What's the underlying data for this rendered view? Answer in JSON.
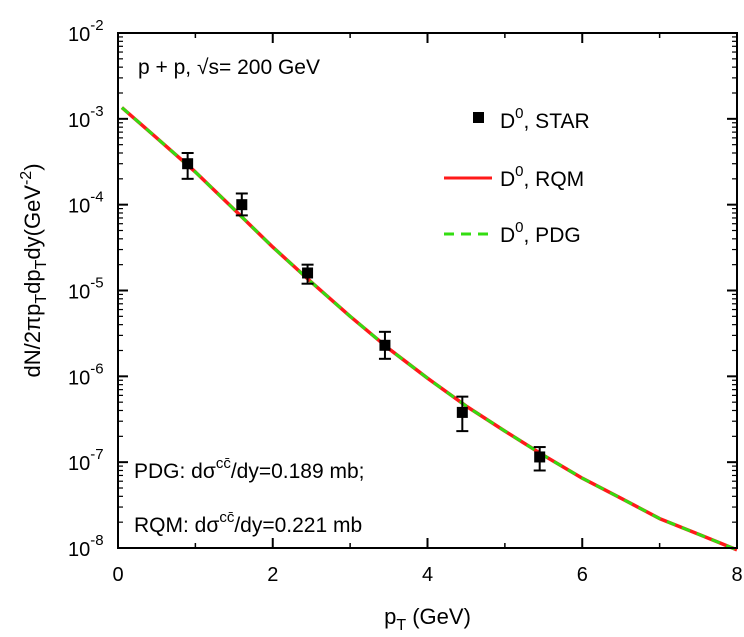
{
  "chart_data": {
    "type": "scatter",
    "annotation_top": "p + p, √s= 200 GeV",
    "annotation_pdg": {
      "prefix": "PDG: dσ",
      "sup": "cc̄",
      "suffix": "/dy=0.189 mb;"
    },
    "annotation_rqm": {
      "prefix": "RQM: dσ",
      "sup": "cc̄",
      "suffix": "/dy=0.221 mb"
    },
    "xlabel": {
      "base": "p",
      "sub": "T",
      "rest": " (GeV)"
    },
    "ylabel": "dN/2πpₜdpₜdy(GeV⁻²)",
    "ylabel_parts": {
      "a": "dN/2πp",
      "sub1": "T",
      "b": "dp",
      "sub2": "T",
      "c": "dy(GeV",
      "sup": "-2",
      "d": ")"
    },
    "xlim": [
      0,
      8
    ],
    "ylim": [
      1e-08,
      0.01
    ],
    "yscale": "log",
    "x_ticks": [
      "0",
      "2",
      "4",
      "6",
      "8"
    ],
    "y_ticks": [
      {
        "base": "10",
        "exp": "-8"
      },
      {
        "base": "10",
        "exp": "-7"
      },
      {
        "base": "10",
        "exp": "-6"
      },
      {
        "base": "10",
        "exp": "-5"
      },
      {
        "base": "10",
        "exp": "-4"
      },
      {
        "base": "10",
        "exp": "-3"
      },
      {
        "base": "10",
        "exp": "-2"
      }
    ],
    "legend_position": "top-right",
    "series": [
      {
        "name": "D⁰, STAR",
        "name_parts": {
          "base": "D",
          "sup": "0",
          "rest": ", STAR"
        },
        "kind": "points",
        "color": "#000000",
        "points": [
          {
            "x": 0.9,
            "y": 0.0003,
            "ylo": 0.0002,
            "yhi": 0.0004
          },
          {
            "x": 1.6,
            "y": 0.0001,
            "ylo": 7.5e-05,
            "yhi": 0.000135
          },
          {
            "x": 2.45,
            "y": 1.6e-05,
            "ylo": 1.2e-05,
            "yhi": 2e-05
          },
          {
            "x": 3.45,
            "y": 2.3e-06,
            "ylo": 1.6e-06,
            "yhi": 3.3e-06
          },
          {
            "x": 4.45,
            "y": 3.8e-07,
            "ylo": 2.3e-07,
            "yhi": 5.8e-07
          },
          {
            "x": 5.45,
            "y": 1.15e-07,
            "ylo": 8e-08,
            "yhi": 1.5e-07
          }
        ]
      },
      {
        "name": "D⁰, RQM",
        "name_parts": {
          "base": "D",
          "sup": "0",
          "rest": ", RQM"
        },
        "kind": "line",
        "color": "#ff1a1a",
        "x": [
          0.05,
          0.5,
          1.0,
          1.5,
          2.0,
          2.5,
          3.0,
          3.5,
          4.0,
          4.5,
          5.0,
          5.5,
          6.0,
          6.5,
          7.0,
          7.5,
          8.0
        ],
        "y": [
          0.00135,
          0.0006,
          0.00024,
          8.8e-05,
          3.2e-05,
          1.25e-05,
          5e-06,
          2.1e-06,
          9.5e-07,
          4.5e-07,
          2.3e-07,
          1.2e-07,
          6.5e-08,
          3.8e-08,
          2.2e-08,
          1.45e-08,
          9.5e-09
        ]
      },
      {
        "name": "D⁰, PDG",
        "name_parts": {
          "base": "D",
          "sup": "0",
          "rest": ", PDG"
        },
        "kind": "dashed",
        "color": "#33dd11",
        "x": [
          0.05,
          0.5,
          1.0,
          1.5,
          2.0,
          2.5,
          3.0,
          3.5,
          4.0,
          4.5,
          5.0,
          5.5,
          6.0,
          6.5,
          7.0,
          7.5,
          8.0
        ],
        "y": [
          0.00135,
          0.0006,
          0.00024,
          8.8e-05,
          3.2e-05,
          1.25e-05,
          5e-06,
          2.1e-06,
          9.5e-07,
          4.5e-07,
          2.3e-07,
          1.2e-07,
          6.5e-08,
          3.8e-08,
          2.2e-08,
          1.45e-08,
          9.5e-09
        ]
      }
    ]
  }
}
